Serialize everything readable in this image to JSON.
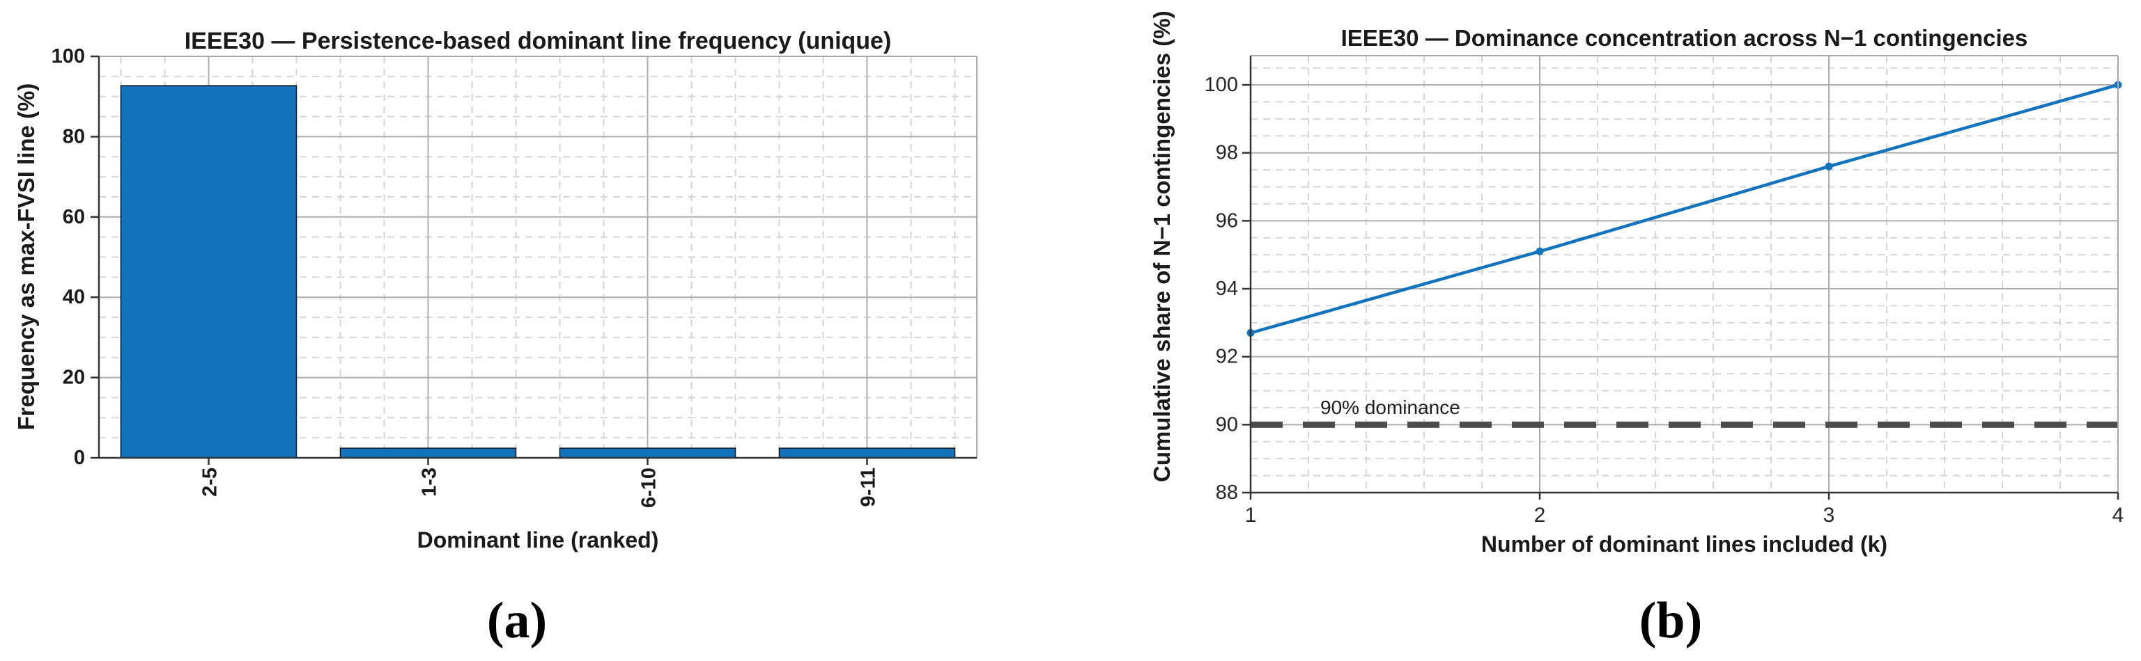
{
  "figure": {
    "panel_labels": {
      "a": "(a)",
      "b": "(b)"
    },
    "colors": {
      "data_blue": "#1373BD",
      "bar_edge": "#111111",
      "threshold_gray": "#4D4D4D",
      "grid_major": "#ADADAD",
      "grid_minor": "#D6D6D6",
      "spine_dark": "#333333",
      "spine_light": "#A8A8A8",
      "text": "#1A1A1A"
    }
  },
  "chart_data": [
    {
      "type": "bar",
      "panel": "a",
      "title": "IEEE30 — Persistence-based dominant line frequency (unique)",
      "xlabel": "Dominant line (ranked)",
      "ylabel": "Frequency as max-FVSI line (%)",
      "categories": [
        "2-5",
        "1-3",
        "6-10",
        "9-11"
      ],
      "values": [
        92.7,
        2.4,
        2.4,
        2.4
      ],
      "ylim": [
        0,
        100
      ],
      "y_ticks": [
        0,
        20,
        40,
        60,
        80,
        100
      ],
      "y_minor_step": 5,
      "x_minor_step": 0.2,
      "bar_width_fraction": 0.8,
      "grid": "on",
      "minor_grid": "on",
      "tick_label_rotation": 90,
      "legend": "none"
    },
    {
      "type": "line",
      "panel": "b",
      "title": "IEEE30 — Dominance concentration across N−1 contingencies",
      "xlabel": "Number of dominant lines included (k)",
      "ylabel": "Cumulative share of N−1 contingencies (%)",
      "x": [
        1,
        2,
        3,
        4
      ],
      "y": [
        92.7,
        95.1,
        97.6,
        100
      ],
      "xlim": [
        1,
        4
      ],
      "ylim": [
        88,
        100.86
      ],
      "x_ticks": [
        1,
        2,
        3,
        4
      ],
      "y_ticks": [
        88,
        90,
        92,
        94,
        96,
        98,
        100
      ],
      "y_minor_step": 0.5,
      "x_minor_step": 0.2,
      "marker": "point",
      "threshold": {
        "y": 90,
        "label": "90% dominance",
        "style": "dashed"
      },
      "grid": "on",
      "minor_grid": "on",
      "legend": "none"
    }
  ]
}
